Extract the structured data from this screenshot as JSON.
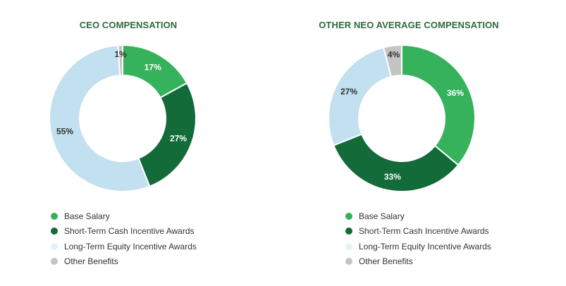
{
  "chart_data": [
    {
      "type": "pie",
      "title": "CEO COMPENSATION",
      "categories": [
        "Base Salary",
        "Short-Term Cash Incentive Awards",
        "Long-Term Equity Incentive Awards",
        "Other Benefits"
      ],
      "values": [
        17,
        27,
        55,
        1
      ],
      "labels": [
        "17%",
        "27%",
        "55%",
        "1%"
      ]
    },
    {
      "type": "pie",
      "title": "OTHER NEO AVERAGE COMPENSATION",
      "categories": [
        "Base Salary",
        "Short-Term Cash Incentive Awards",
        "Long-Term Equity Incentive Awards",
        "Other Benefits"
      ],
      "values": [
        36,
        33,
        27,
        4
      ],
      "labels": [
        "36%",
        "33%",
        "27%",
        "4%"
      ]
    }
  ],
  "colors": {
    "Base Salary": "#35b25b",
    "Short-Term Cash Incentive Awards": "#146b3a",
    "Long-Term Equity Incentive Awards": "#c3e0f0",
    "Other Benefits": "#c4c4c4"
  },
  "legend_colors": {
    "Long-Term Equity Incentive Awards": "#e3f2fa"
  }
}
